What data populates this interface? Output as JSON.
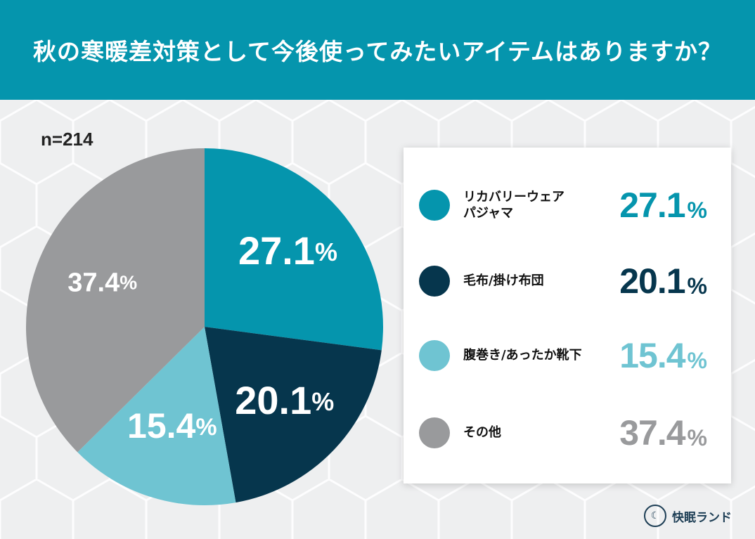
{
  "title": "秋の寒暖差対策として今後使ってみたいアイテムはありますか？",
  "sample": "n=214",
  "chart_data": {
    "type": "pie",
    "categories": [
      "リカバリーウェア パジャマ",
      "毛布/掛け布団",
      "腹巻き/あったか靴下",
      "その他"
    ],
    "values": [
      27.1,
      20.1,
      15.4,
      37.4
    ],
    "colors": [
      "#0595ad",
      "#06364d",
      "#6fc4d2",
      "#999a9c"
    ],
    "slice_labels": [
      "27.1",
      "20.1",
      "15.4",
      "37.4"
    ],
    "unit": "%"
  },
  "legend": [
    {
      "label_line1": "リカバリーウェア",
      "label_line2": "パジャマ",
      "value": "27.1",
      "unit": "%",
      "color": "#0595ad"
    },
    {
      "label_line1": "毛布/掛け布団",
      "label_line2": "",
      "value": "20.1",
      "unit": "%",
      "color": "#06364d"
    },
    {
      "label_line1": "腹巻き/あったか靴下",
      "label_line2": "",
      "value": "15.4",
      "unit": "%",
      "color": "#6fc4d2"
    },
    {
      "label_line1": "その他",
      "label_line2": "",
      "value": "37.4",
      "unit": "%",
      "color": "#999a9c"
    }
  ],
  "brand": "快眠ランド"
}
